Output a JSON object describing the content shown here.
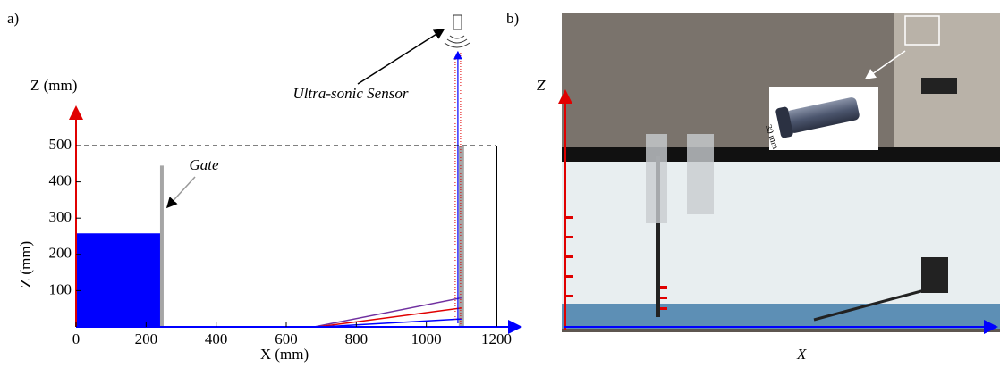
{
  "panel_a": {
    "label": "a)"
  },
  "panel_b": {
    "label": "b)",
    "z_label": "Z",
    "x_label": "X",
    "inset_label": "30 mm"
  },
  "chart_data": {
    "type": "schematic",
    "x_label": "X (mm)",
    "y_label": "Z (mm)",
    "z_axis_label": "Z (mm)",
    "gate_label": "Gate",
    "sensor_label": "Ultra-sonic Sensor",
    "xlim": [
      0,
      1200
    ],
    "ylim": [
      0,
      500
    ],
    "xticks": [
      0,
      200,
      400,
      600,
      800,
      1000,
      1200
    ],
    "yticks": [
      100,
      200,
      300,
      400,
      500
    ],
    "water": {
      "length": 240,
      "depth": 258,
      "color": "#0000ff"
    },
    "gate": {
      "x": 245,
      "height": 445,
      "color": "#a6a6a6"
    },
    "wall": {
      "x": 1100,
      "height": 500,
      "color": "#a6a6a6"
    },
    "sensor_x": 1090,
    "beams": [
      {
        "color": "#7030a0",
        "x": [
          680,
          1100
        ],
        "values": [
          0,
          80
        ]
      },
      {
        "color": "#e00000",
        "x": [
          690,
          1100
        ],
        "values": [
          0,
          52
        ]
      },
      {
        "color": "#0000ff",
        "x": [
          700,
          1100
        ],
        "values": [
          0,
          22
        ]
      }
    ]
  }
}
